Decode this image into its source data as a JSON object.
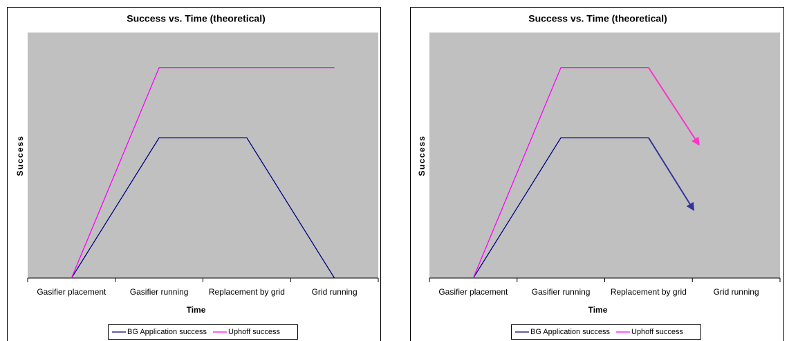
{
  "chart_data": [
    {
      "type": "line",
      "title": "Success vs. Time (theoretical)",
      "x_label": "Time",
      "y_label": "Success",
      "categories": [
        "Gasifier placement",
        "Gasifier running",
        "Replacement by grid",
        "Grid running"
      ],
      "ylim": [
        0,
        3.5
      ],
      "series": [
        {
          "name": "BG Application success",
          "color": "#000080",
          "values": [
            0,
            2,
            2,
            0
          ]
        },
        {
          "name": "Uphoff success",
          "color": "#ff00ff",
          "values": [
            0,
            3,
            3,
            3
          ]
        }
      ]
    },
    {
      "type": "line",
      "title": "Success vs. Time (theoretical)",
      "x_label": "Time",
      "y_label": "Success",
      "categories": [
        "Gasifier placement",
        "Gasifier running",
        "Replacement by grid",
        "Grid running"
      ],
      "ylim": [
        0,
        3.5
      ],
      "series": [
        {
          "name": "BG Application success",
          "color": "#000080",
          "values": [
            0,
            2,
            2,
            null
          ],
          "arrow_color": "#333399",
          "arrow_end": {
            "x": 2.51,
            "y": 0.98
          }
        },
        {
          "name": "Uphoff success",
          "color": "#ff00ff",
          "values": [
            0,
            3,
            3,
            null
          ],
          "arrow_color": "#ff33cc",
          "arrow_end": {
            "x": 2.57,
            "y": 1.91
          }
        }
      ]
    }
  ]
}
